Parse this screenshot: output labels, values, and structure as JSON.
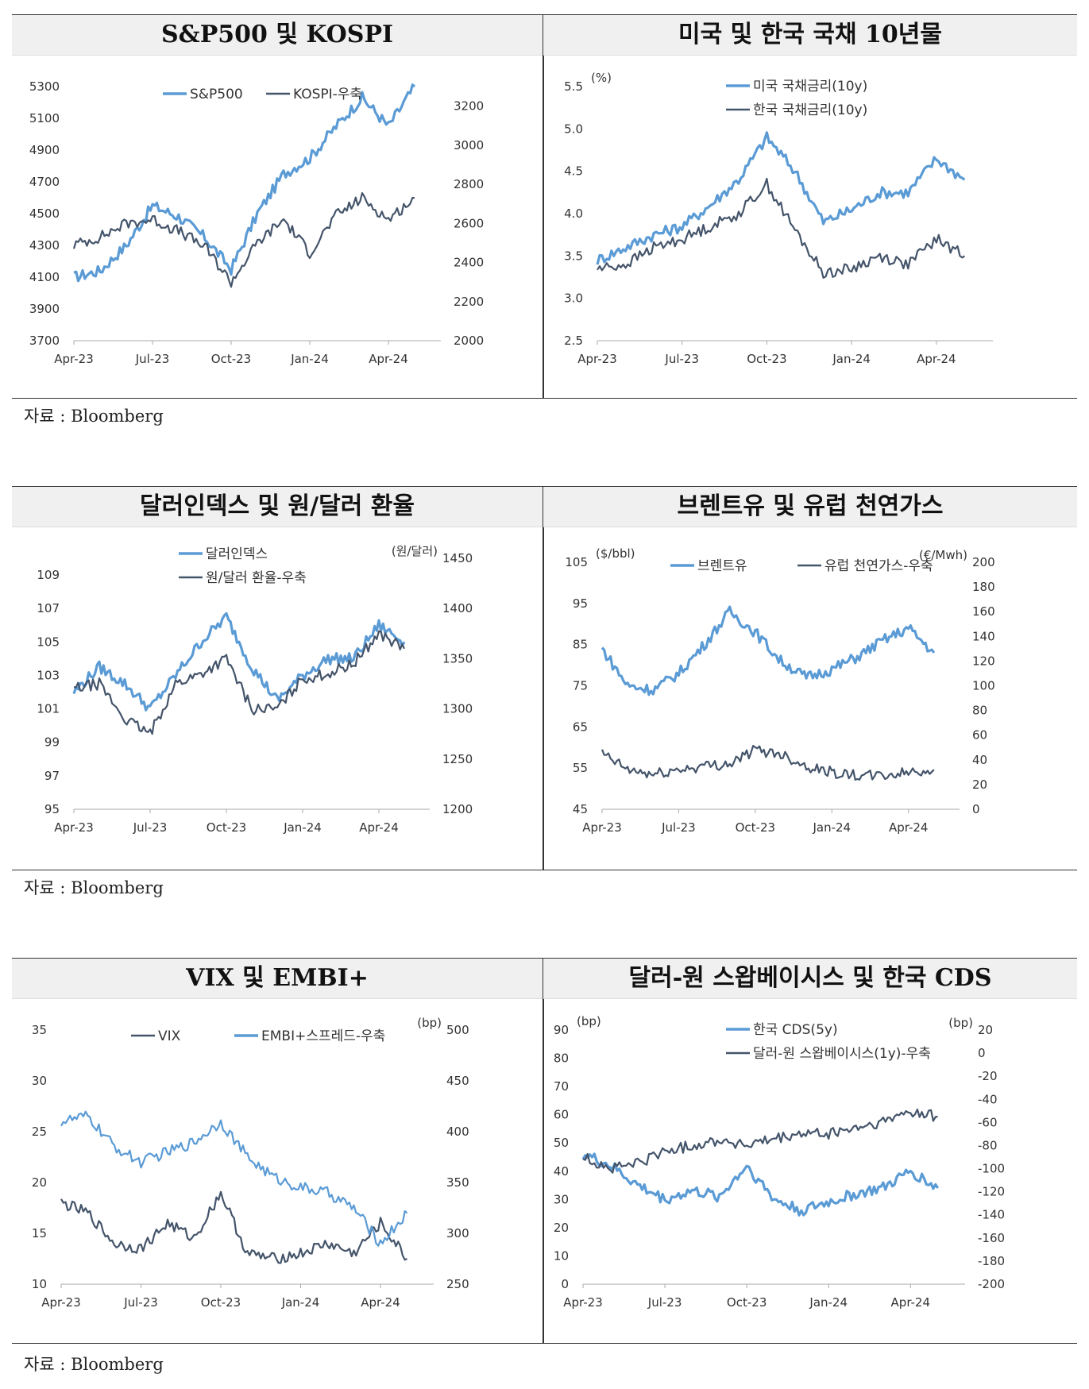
{
  "charts": [
    {
      "title": "S&P500 및 KOSPI",
      "source": "자료 : Bloomberg",
      "colors": {
        "s1": "#5b9bd5",
        "s2": "#44546a"
      },
      "legend": [
        "S&P500",
        "KOSPI-우축"
      ],
      "left_unit": "",
      "right_unit": "",
      "x_ticks": [
        "Apr-23",
        "Jul-23",
        "Oct-23",
        "Jan-24",
        "Apr-24"
      ],
      "y_left_ticks": [
        "3700",
        "3900",
        "4100",
        "4300",
        "4500",
        "4700",
        "4900",
        "5100",
        "5300"
      ],
      "y_right_ticks": [
        "2000",
        "2200",
        "2400",
        "2600",
        "2800",
        "3000",
        "3200"
      ],
      "chart_data": {
        "type": "line",
        "x": [
          "2023-04",
          "2023-05",
          "2023-06",
          "2023-07",
          "2023-08",
          "2023-09",
          "2023-10",
          "2023-11",
          "2023-12",
          "2024-01",
          "2024-02",
          "2024-03",
          "2024-04",
          "2024-05"
        ],
        "series": [
          {
            "name": "S&P500",
            "axis": "left",
            "values": [
              4100,
              4140,
              4300,
              4550,
              4480,
              4350,
              4150,
              4500,
              4750,
              4850,
              5050,
              5230,
              5050,
              5300
            ]
          },
          {
            "name": "KOSPI-우축",
            "axis": "right",
            "values": [
              2490,
              2530,
              2600,
              2620,
              2560,
              2480,
              2300,
              2500,
              2620,
              2450,
              2640,
              2730,
              2620,
              2730
            ]
          }
        ],
        "ylim_left": [
          3700,
          5300
        ],
        "ylim_right": [
          2000,
          3300
        ]
      }
    },
    {
      "title": "미국 및 한국 국채 10년물",
      "source": "",
      "colors": {
        "s1": "#5b9bd5",
        "s2": "#44546a"
      },
      "legend": [
        "미국 국채금리(10y)",
        "한국 국채금리(10y)"
      ],
      "left_unit": "(%)",
      "right_unit": "",
      "x_ticks": [
        "Apr-23",
        "Jul-23",
        "Oct-23",
        "Jan-24",
        "Apr-24"
      ],
      "y_left_ticks": [
        "2.5",
        "3.0",
        "3.5",
        "4.0",
        "4.5",
        "5.0",
        "5.5"
      ],
      "y_right_ticks": [],
      "chart_data": {
        "type": "line",
        "x": [
          "2023-04",
          "2023-05",
          "2023-06",
          "2023-07",
          "2023-08",
          "2023-09",
          "2023-10",
          "2023-11",
          "2023-12",
          "2024-01",
          "2024-02",
          "2024-03",
          "2024-04",
          "2024-05"
        ],
        "series": [
          {
            "name": "미국 국채금리(10y)",
            "axis": "left",
            "values": [
              3.45,
              3.6,
              3.75,
              3.85,
              4.1,
              4.4,
              4.9,
              4.5,
              3.9,
              4.05,
              4.25,
              4.25,
              4.65,
              4.4
            ]
          },
          {
            "name": "한국 국채금리(10y)",
            "axis": "left",
            "values": [
              3.35,
              3.4,
              3.6,
              3.7,
              3.85,
              4.0,
              4.35,
              3.8,
              3.3,
              3.35,
              3.5,
              3.4,
              3.7,
              3.5
            ]
          }
        ],
        "ylim_left": [
          2.5,
          5.5
        ]
      }
    },
    {
      "title": "달러인덱스 및 원/달러 환율",
      "source": "자료 : Bloomberg",
      "colors": {
        "s1": "#5b9bd5",
        "s2": "#44546a"
      },
      "legend": [
        "달러인덱스",
        "원/달러 환율-우축"
      ],
      "left_unit": "",
      "right_unit": "(원/달러)",
      "x_ticks": [
        "Apr-23",
        "Jul-23",
        "Oct-23",
        "Jan-24",
        "Apr-24"
      ],
      "y_left_ticks": [
        "95",
        "97",
        "99",
        "101",
        "103",
        "105",
        "107",
        "109"
      ],
      "y_right_ticks": [
        "1200",
        "1250",
        "1300",
        "1350",
        "1400",
        "1450"
      ],
      "chart_data": {
        "type": "line",
        "x": [
          "2023-04",
          "2023-05",
          "2023-06",
          "2023-07",
          "2023-08",
          "2023-09",
          "2023-10",
          "2023-11",
          "2023-12",
          "2024-01",
          "2024-02",
          "2024-03",
          "2024-04",
          "2024-05"
        ],
        "series": [
          {
            "name": "달러인덱스",
            "axis": "left",
            "values": [
              102,
              103.5,
              102.5,
              101,
              103,
              105,
              106.5,
              103.5,
              101.5,
              103,
              104,
              104,
              106,
              105
            ]
          },
          {
            "name": "원/달러 환율-우축",
            "axis": "right",
            "values": [
              1320,
              1325,
              1290,
              1275,
              1325,
              1335,
              1350,
              1300,
              1300,
              1330,
              1335,
              1345,
              1375,
              1360
            ]
          }
        ],
        "ylim_left": [
          95,
          110
        ],
        "ylim_right": [
          1200,
          1450
        ]
      }
    },
    {
      "title": "브렌트유 및 유럽 천연가스",
      "source": "",
      "colors": {
        "s1": "#5b9bd5",
        "s2": "#44546a"
      },
      "legend": [
        "브렌트유",
        "유럽 천연가스-우축"
      ],
      "left_unit": "($/bbl)",
      "right_unit": "(€/Mwh)",
      "x_ticks": [
        "Apr-23",
        "Jul-23",
        "Oct-23",
        "Jan-24",
        "Apr-24"
      ],
      "y_left_ticks": [
        "45",
        "55",
        "65",
        "75",
        "85",
        "95",
        "105"
      ],
      "y_right_ticks": [
        "0",
        "20",
        "40",
        "60",
        "80",
        "100",
        "120",
        "140",
        "160",
        "180",
        "200"
      ],
      "chart_data": {
        "type": "line",
        "x": [
          "2023-04",
          "2023-05",
          "2023-06",
          "2023-07",
          "2023-08",
          "2023-09",
          "2023-10",
          "2023-11",
          "2023-12",
          "2024-01",
          "2024-02",
          "2024-03",
          "2024-04",
          "2024-05"
        ],
        "series": [
          {
            "name": "브렌트유",
            "axis": "left",
            "values": [
              84,
              75,
              74,
              78,
              85,
              93,
              88,
              81,
              77,
              79,
              82,
              86,
              89,
              83
            ]
          },
          {
            "name": "유럽 천연가스-우축",
            "axis": "right",
            "values": [
              45,
              32,
              28,
              32,
              35,
              37,
              48,
              45,
              35,
              30,
              27,
              27,
              30,
              32
            ]
          }
        ],
        "ylim_left": [
          45,
          105
        ],
        "ylim_right": [
          0,
          200
        ]
      }
    },
    {
      "title": "VIX 및 EMBI+",
      "source": "자료 : Bloomberg",
      "colors": {
        "s1": "#44546a",
        "s2": "#5b9bd5"
      },
      "legend": [
        "VIX",
        "EMBI+스프레드-우축"
      ],
      "left_unit": "",
      "right_unit": "(bp)",
      "x_ticks": [
        "Apr-23",
        "Jul-23",
        "Oct-23",
        "Jan-24",
        "Apr-24"
      ],
      "y_left_ticks": [
        "10",
        "15",
        "20",
        "25",
        "30",
        "35"
      ],
      "y_right_ticks": [
        "250",
        "300",
        "350",
        "400",
        "450",
        "500"
      ],
      "chart_data": {
        "type": "line",
        "x": [
          "2023-04",
          "2023-05",
          "2023-06",
          "2023-07",
          "2023-08",
          "2023-09",
          "2023-10",
          "2023-11",
          "2023-12",
          "2024-01",
          "2024-02",
          "2024-03",
          "2024-04",
          "2024-05"
        ],
        "series": [
          {
            "name": "VIX",
            "axis": "left",
            "values": [
              18,
              17,
              14,
              13.5,
              16,
              14.5,
              19,
              13,
              12.5,
              13,
              14,
              13,
              16,
              12.5
            ]
          },
          {
            "name": "EMBI+스프레드-우축",
            "axis": "right",
            "values": [
              410,
              415,
              385,
              370,
              380,
              390,
              410,
              375,
              355,
              345,
              340,
              325,
              290,
              320
            ]
          }
        ],
        "ylim_left": [
          10,
          35
        ],
        "ylim_right": [
          250,
          500
        ]
      }
    },
    {
      "title": "달러-원 스왑베이시스 및 한국 CDS",
      "source": "",
      "colors": {
        "s1": "#5b9bd5",
        "s2": "#44546a"
      },
      "legend": [
        "한국 CDS(5y)",
        "달러-원 스왑베이시스(1y)-우축"
      ],
      "left_unit": "(bp)",
      "right_unit": "(bp)",
      "x_ticks": [
        "Apr-23",
        "Jul-23",
        "Oct-23",
        "Jan-24",
        "Apr-24"
      ],
      "y_left_ticks": [
        "0",
        "10",
        "20",
        "30",
        "40",
        "50",
        "60",
        "70",
        "80",
        "90"
      ],
      "y_right_ticks": [
        "-200",
        "-180",
        "-160",
        "-140",
        "-120",
        "-100",
        "-80",
        "-60",
        "-40",
        "-20",
        "0",
        "20"
      ],
      "chart_data": {
        "type": "line",
        "x": [
          "2023-04",
          "2023-05",
          "2023-06",
          "2023-07",
          "2023-08",
          "2023-09",
          "2023-10",
          "2023-11",
          "2023-12",
          "2024-01",
          "2024-02",
          "2024-03",
          "2024-04",
          "2024-05"
        ],
        "series": [
          {
            "name": "한국 CDS(5y)",
            "axis": "left",
            "values": [
              46,
              42,
              35,
              30,
              33,
              31,
              42,
              30,
              26,
              29,
              32,
              34,
              40,
              34
            ]
          },
          {
            "name": "달러-원 스왑베이시스(1y)-우축",
            "axis": "right",
            "values": [
              -90,
              -100,
              -95,
              -85,
              -80,
              -75,
              -80,
              -75,
              -70,
              -70,
              -65,
              -60,
              -50,
              -55
            ]
          }
        ],
        "ylim_left": [
          0,
          90
        ],
        "ylim_right": [
          -200,
          20
        ]
      }
    }
  ]
}
